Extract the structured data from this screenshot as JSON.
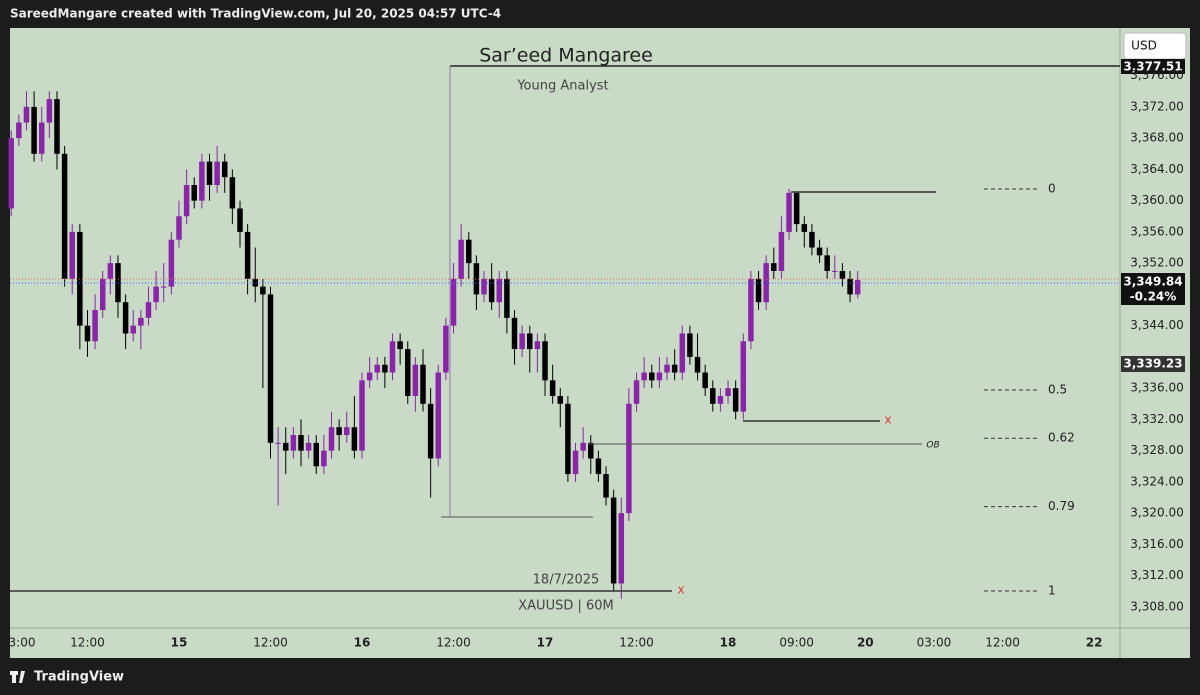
{
  "header": {
    "attribution": "SareedMangare created with TradingView.com, Jul 20, 2025 04:57 UTC-4"
  },
  "footer": {
    "brand": "TradingView"
  },
  "chart_data": {
    "type": "candlestick",
    "title": "Sar’eed Mangaree",
    "subtitle": "Young Analyst",
    "symbol": "XAUUSD | 60M",
    "currency": "USD",
    "up_color": "#8a24a8",
    "down_color": "#000000",
    "open": [
      3359,
      3368,
      3370,
      3372,
      3366,
      3370,
      3373,
      3366,
      3350,
      3356,
      3344,
      3342,
      3346,
      3350,
      3352,
      3347,
      3343,
      3344,
      3345,
      3347,
      3349,
      3349,
      3355,
      3358,
      3362,
      3360,
      3365,
      3362,
      3365,
      3363,
      3359,
      3356,
      3350,
      3349,
      3348,
      3329,
      3329,
      3328,
      3330,
      3328,
      3329,
      3326,
      3328,
      3331,
      3330,
      3331,
      3328,
      3337,
      3338,
      3339,
      3338,
      3342,
      3341,
      3335,
      3339,
      3334,
      3327,
      3338,
      3344,
      3350,
      3355,
      3352,
      3348,
      3350,
      3347,
      3350,
      3345,
      3341,
      3343,
      3341,
      3342,
      3337,
      3335,
      3334,
      3325,
      3328,
      3329,
      3327,
      3325,
      3322,
      3311,
      3320,
      3334,
      3337,
      3338,
      3337,
      3338,
      3339,
      3338,
      3343,
      3340,
      3338,
      3336,
      3334,
      3335,
      3336,
      3333,
      3342,
      3350,
      3347,
      3352,
      3351,
      3356,
      3361,
      3357,
      3356,
      3354,
      3353,
      3351,
      3351,
      3350,
      3348
    ],
    "high": [
      3369,
      3371,
      3374,
      3374,
      3372,
      3374,
      3374,
      3367,
      3357,
      3357,
      3346,
      3348,
      3351,
      3353,
      3353,
      3348,
      3346,
      3346,
      3349,
      3351,
      3352,
      3356,
      3360,
      3364,
      3363,
      3366,
      3366,
      3367,
      3366,
      3364,
      3360,
      3357,
      3354,
      3350,
      3349,
      3331,
      3331,
      3331,
      3332,
      3330,
      3330,
      3330,
      3333,
      3332,
      3333,
      3335,
      3338,
      3340,
      3340,
      3340,
      3343,
      3343,
      3342,
      3340,
      3341,
      3336,
      3339,
      3345,
      3352,
      3357,
      3356,
      3353,
      3351,
      3352,
      3351,
      3351,
      3346,
      3344,
      3344,
      3343,
      3343,
      3339,
      3336,
      3335,
      3329,
      3331,
      3330,
      3328,
      3326,
      3323,
      3322,
      3336,
      3338,
      3340,
      3339,
      3340,
      3340,
      3341,
      3344,
      3344,
      3343,
      3339,
      3337,
      3336,
      3337,
      3337,
      3343,
      3351,
      3351,
      3353,
      3354,
      3358,
      3361.5,
      3361,
      3358,
      3357,
      3355,
      3354,
      3353,
      3352,
      3351,
      3351
    ],
    "low": [
      3358,
      3367,
      3369,
      3365,
      3365,
      3368,
      3364,
      3349,
      3348,
      3341,
      3340,
      3341,
      3345,
      3348,
      3345,
      3341,
      3342,
      3341,
      3344,
      3346,
      3347,
      3348,
      3354,
      3357,
      3359,
      3359,
      3360,
      3361,
      3361,
      3357,
      3354,
      3348,
      3347,
      3336,
      3327,
      3321,
      3325,
      3327,
      3326,
      3327,
      3325,
      3325,
      3327,
      3328,
      3329,
      3327,
      3327,
      3336,
      3337,
      3336,
      3337,
      3339,
      3334,
      3333,
      3333,
      3322,
      3326,
      3337,
      3343,
      3349,
      3350,
      3346,
      3347,
      3346,
      3345,
      3343,
      3339,
      3340,
      3338,
      3338,
      3335,
      3334,
      3331,
      3324,
      3324,
      3327,
      3325,
      3324,
      3321,
      3310,
      3309,
      3319,
      3333,
      3336,
      3336,
      3336,
      3337,
      3337,
      3337,
      3339,
      3337,
      3335,
      3333,
      3333,
      3334,
      3332,
      3332,
      3341,
      3346,
      3346,
      3350,
      3350,
      3355,
      3356,
      3354,
      3353,
      3352,
      3350,
      3350,
      3349,
      3347,
      3347.5
    ],
    "close": [
      3368,
      3370,
      3372,
      3366,
      3370,
      3373,
      3366,
      3350,
      3356,
      3344,
      3342,
      3346,
      3350,
      3352,
      3347,
      3343,
      3344,
      3345,
      3347,
      3349,
      3349,
      3355,
      3358,
      3362,
      3360,
      3365,
      3362,
      3365,
      3363,
      3359,
      3356,
      3350,
      3349,
      3348,
      3329,
      3329,
      3328,
      3330,
      3328,
      3329,
      3326,
      3328,
      3331,
      3330,
      3331,
      3328,
      3337,
      3338,
      3339,
      3338,
      3342,
      3341,
      3335,
      3339,
      3334,
      3327,
      3338,
      3344,
      3350,
      3355,
      3352,
      3348,
      3350,
      3347,
      3350,
      3345,
      3341,
      3343,
      3341,
      3342,
      3337,
      3335,
      3334,
      3325,
      3328,
      3329,
      3327,
      3325,
      3322,
      3311,
      3320,
      3334,
      3337,
      3338,
      3337,
      3338,
      3339,
      3338,
      3343,
      3340,
      3338,
      3336,
      3334,
      3335,
      3336,
      3333,
      3342,
      3350,
      3347,
      3352,
      3351,
      3356,
      3361,
      3357,
      3356,
      3354,
      3353,
      3351,
      3351,
      3350,
      3348,
      3349.84
    ],
    "xlim": [
      -0.16,
      145.4
    ],
    "xticks": [
      {
        "value": 1,
        "label": "3:00"
      },
      {
        "value": 10,
        "label": "12:00"
      },
      {
        "value": 22,
        "label": "15"
      },
      {
        "value": 34,
        "label": "12:00"
      },
      {
        "value": 46,
        "label": "16"
      },
      {
        "value": 58,
        "label": "12:00"
      },
      {
        "value": 70,
        "label": "17"
      },
      {
        "value": 82,
        "label": "12:00"
      },
      {
        "value": 94,
        "label": "18"
      },
      {
        "value": 103,
        "label": "09:00"
      },
      {
        "value": 112,
        "label": "20"
      },
      {
        "value": 121,
        "label": "03:00"
      },
      {
        "value": 130,
        "label": "12:00"
      },
      {
        "value": 142,
        "label": "22"
      }
    ],
    "ylim": [
      3305.3,
      3382.1
    ],
    "yticks": [
      {
        "value": 3308,
        "label": "3,308.00"
      },
      {
        "value": 3312,
        "label": "3,312.00"
      },
      {
        "value": 3316,
        "label": "3,316.00"
      },
      {
        "value": 3320,
        "label": "3,320.00"
      },
      {
        "value": 3324,
        "label": "3,324.00"
      },
      {
        "value": 3328,
        "label": "3,328.00"
      },
      {
        "value": 3332,
        "label": "3,332.00"
      },
      {
        "value": 3336,
        "label": "3,336.00"
      },
      {
        "value": 3344,
        "label": "3,344.00"
      },
      {
        "value": 3352,
        "label": "3,352.00"
      },
      {
        "value": 3356,
        "label": "3,356.00"
      },
      {
        "value": 3360,
        "label": "3,360.00"
      },
      {
        "value": 3364,
        "label": "3,364.00"
      },
      {
        "value": 3368,
        "label": "3,368.00"
      },
      {
        "value": 3372,
        "label": "3,372.00"
      },
      {
        "value": 3376,
        "label": "3,376.00"
      }
    ],
    "grid": false,
    "price_tags": [
      "3,377.51",
      "3,349.84",
      "-0.24%",
      "3,339.23"
    ],
    "annotations": {
      "date": "18/7/2025",
      "ob": "OB",
      "x_marks": [
        "x",
        "x"
      ]
    },
    "fib_levels": [
      0,
      0.5,
      0.62,
      0.79,
      1
    ]
  }
}
